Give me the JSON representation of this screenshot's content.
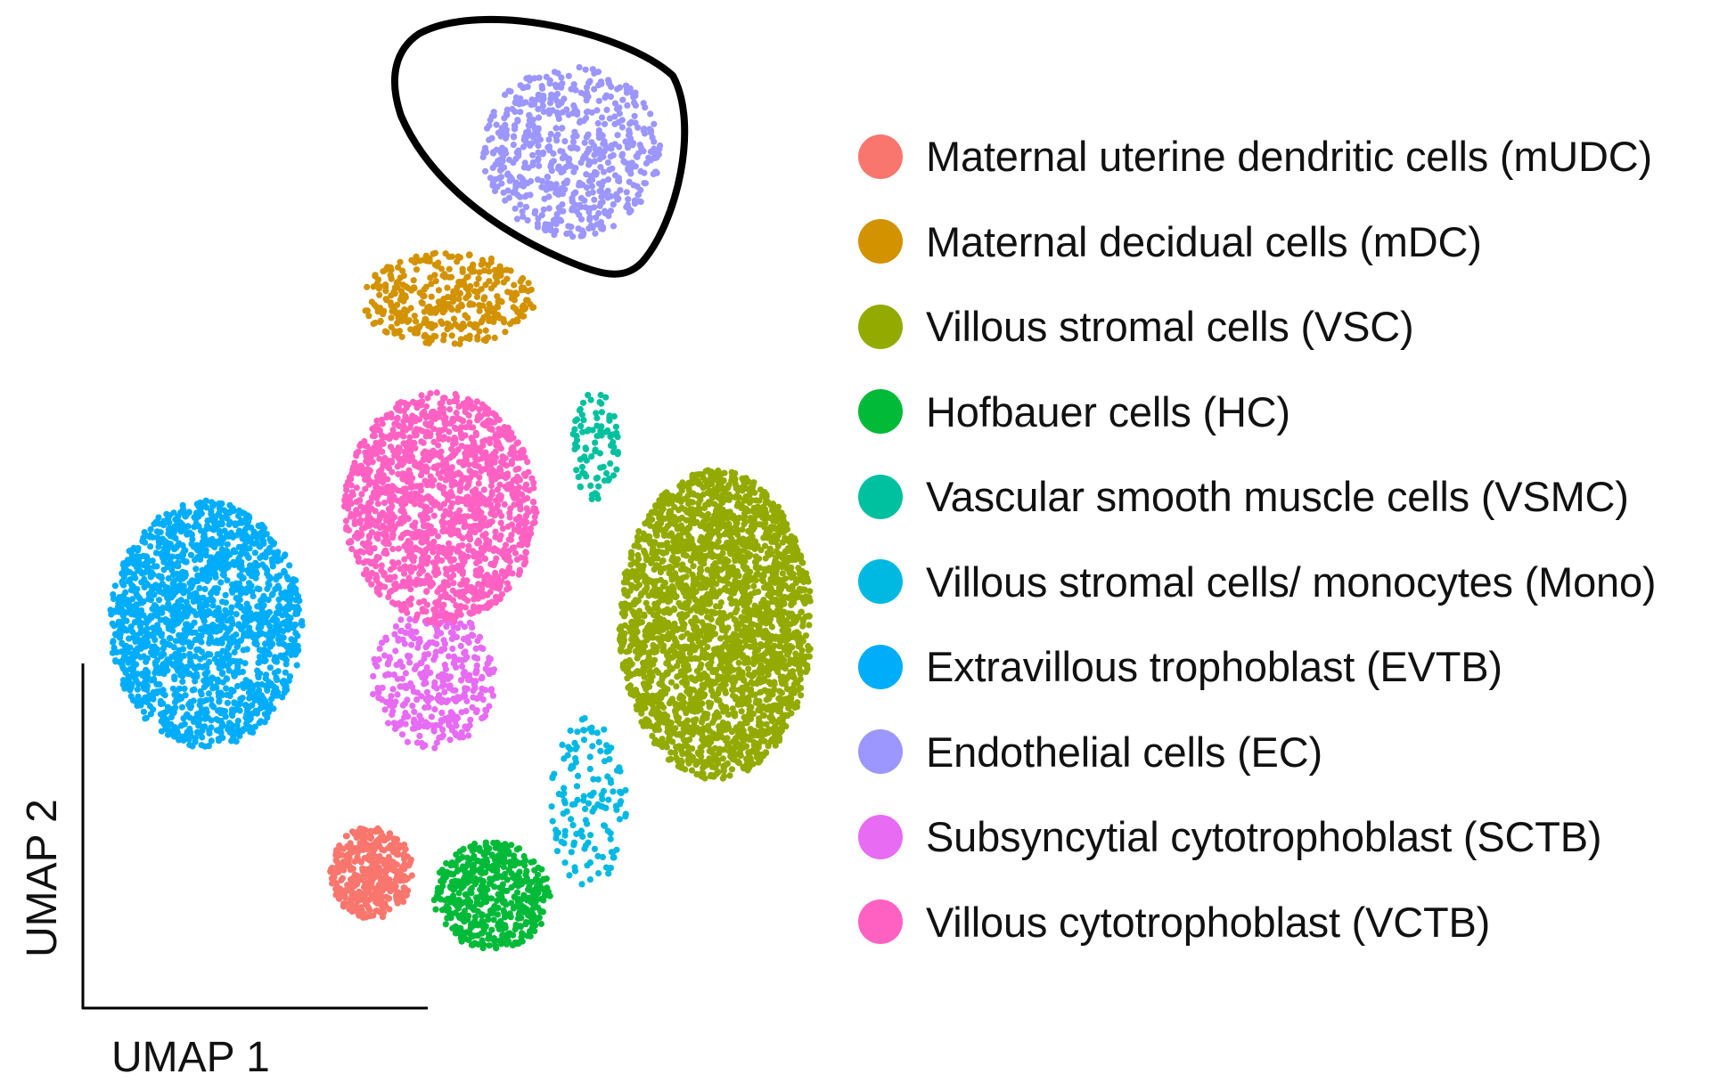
{
  "chart_data": {
    "type": "scatter",
    "title": "",
    "xlabel": "UMAP 1",
    "ylabel": "UMAP 2",
    "legend_position": "right",
    "grid": false,
    "highlight": {
      "cluster": "EC",
      "shape": "rounded-outline",
      "color": "#000000"
    },
    "series": [
      {
        "name": "Maternal uterine dendritic cells (mUDC)",
        "code": "mUDC",
        "color": "#F8766D",
        "regions": [
          {
            "x": [
              2.0,
              3.2
            ],
            "y": [
              1.4,
              2.6
            ],
            "n": 420
          }
        ]
      },
      {
        "name": "Maternal decidual cells (mDC)",
        "code": "mDC",
        "color": "#D39200",
        "regions": [
          {
            "x": [
              2.4,
              5.0
            ],
            "y": [
              8.8,
              10.0
            ],
            "n": 380
          }
        ]
      },
      {
        "name": "Villous stromal cells (VSC)",
        "code": "VSC",
        "color": "#93AA00",
        "regions": [
          {
            "x": [
              6.2,
              9.0
            ],
            "y": [
              3.2,
              7.2
            ],
            "n": 2600
          }
        ]
      },
      {
        "name": "Hofbauer cells (HC)",
        "code": "HC",
        "color": "#00BA38",
        "regions": [
          {
            "x": [
              3.5,
              5.2
            ],
            "y": [
              1.0,
              2.4
            ],
            "n": 520
          }
        ]
      },
      {
        "name": "Vascular smooth muscle cells (VSMC)",
        "code": "VSMC",
        "color": "#00C19F",
        "regions": [
          {
            "x": [
              5.5,
              6.2
            ],
            "y": [
              6.8,
              8.2
            ],
            "n": 90
          }
        ]
      },
      {
        "name": "Villous stromal cells/ monocytes (Mono)",
        "code": "Mono",
        "color": "#00B9E3",
        "regions": [
          {
            "x": [
              5.2,
              6.3
            ],
            "y": [
              1.8,
              4.0
            ],
            "n": 140
          }
        ]
      },
      {
        "name": "Extravillous trophoblast (EVTB)",
        "code": "EVTB",
        "color": "#00ADFA",
        "regions": [
          {
            "x": [
              -1.2,
              1.6
            ],
            "y": [
              3.6,
              6.8
            ],
            "n": 1700
          }
        ]
      },
      {
        "name": "Endothelial cells (EC)",
        "code": "EC",
        "color": "#9C96FF",
        "regions": [
          {
            "x": [
              4.2,
              6.8
            ],
            "y": [
              10.2,
              12.4
            ],
            "n": 620
          }
        ]
      },
      {
        "name": "Subsyncytial cytotrophoblast (SCTB)",
        "code": "SCTB",
        "color": "#E76BF3",
        "regions": [
          {
            "x": [
              2.6,
              4.4
            ],
            "y": [
              3.6,
              5.4
            ],
            "n": 360
          }
        ]
      },
      {
        "name": "Villous cytotrophoblast (VCTB)",
        "code": "VCTB",
        "color": "#FF61C3",
        "regions": [
          {
            "x": [
              2.2,
              5.0
            ],
            "y": [
              5.2,
              8.2
            ],
            "n": 1500
          }
        ]
      }
    ]
  }
}
